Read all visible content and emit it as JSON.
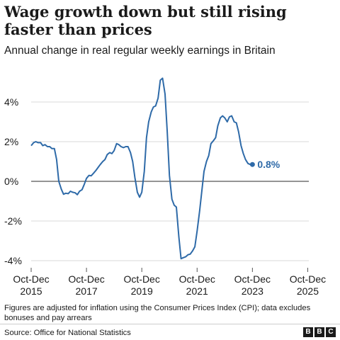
{
  "title": "Wage growth down but still rising faster than prices",
  "subtitle": "Annual change in real regular weekly earnings in Britain",
  "footnote": "Figures are adjusted for inflation using the Consumer Prices Index (CPI); data excludes bonuses and pay arrears",
  "source": "Source: Office for National Statistics",
  "logo": [
    "B",
    "B",
    "C"
  ],
  "colors": {
    "line": "#2e6aa8",
    "label": "#2e6aa8",
    "zero_line": "#555555",
    "grid": "#d9d9d9"
  },
  "chart_data": {
    "type": "line",
    "title": "Wage growth down but still rising faster than prices",
    "subtitle": "Annual change in real regular weekly earnings in Britain",
    "ylim": [
      -4.5,
      5.5
    ],
    "yticks": [
      4,
      2,
      0,
      -2,
      -4
    ],
    "ytick_labels": [
      "4%",
      "2%",
      "0%",
      "-2%",
      "-4%"
    ],
    "xlim": [
      2015.83,
      2025.87
    ],
    "xticks": [
      2015.83,
      2017.83,
      2019.83,
      2021.83,
      2023.83,
      2025.83
    ],
    "xtick_labels": [
      [
        "Oct-Dec",
        "2015"
      ],
      [
        "Oct-Dec",
        "2017"
      ],
      [
        "Oct-Dec",
        "2019"
      ],
      [
        "Oct-Dec",
        "2021"
      ],
      [
        "Oct-Dec",
        "2023"
      ],
      [
        "Oct-Dec",
        "2025"
      ]
    ],
    "grid": true,
    "end_label": "0.8%",
    "series": [
      {
        "values": [
          [
            2015.83,
            1.8
          ],
          [
            2015.92,
            1.95
          ],
          [
            2016.0,
            2.0
          ],
          [
            2016.08,
            1.95
          ],
          [
            2016.17,
            1.95
          ],
          [
            2016.25,
            1.8
          ],
          [
            2016.33,
            1.85
          ],
          [
            2016.42,
            1.75
          ],
          [
            2016.5,
            1.75
          ],
          [
            2016.58,
            1.65
          ],
          [
            2016.67,
            1.65
          ],
          [
            2016.75,
            1.1
          ],
          [
            2016.83,
            0.0
          ],
          [
            2016.92,
            -0.4
          ],
          [
            2017.0,
            -0.65
          ],
          [
            2017.08,
            -0.6
          ],
          [
            2017.17,
            -0.62
          ],
          [
            2017.25,
            -0.5
          ],
          [
            2017.33,
            -0.55
          ],
          [
            2017.42,
            -0.58
          ],
          [
            2017.5,
            -0.67
          ],
          [
            2017.58,
            -0.5
          ],
          [
            2017.67,
            -0.42
          ],
          [
            2017.75,
            -0.15
          ],
          [
            2017.83,
            0.15
          ],
          [
            2017.92,
            0.3
          ],
          [
            2018.0,
            0.28
          ],
          [
            2018.08,
            0.4
          ],
          [
            2018.17,
            0.55
          ],
          [
            2018.25,
            0.7
          ],
          [
            2018.33,
            0.85
          ],
          [
            2018.42,
            1.0
          ],
          [
            2018.5,
            1.1
          ],
          [
            2018.58,
            1.35
          ],
          [
            2018.67,
            1.45
          ],
          [
            2018.75,
            1.4
          ],
          [
            2018.83,
            1.55
          ],
          [
            2018.92,
            1.9
          ],
          [
            2019.0,
            1.85
          ],
          [
            2019.08,
            1.75
          ],
          [
            2019.17,
            1.7
          ],
          [
            2019.25,
            1.75
          ],
          [
            2019.33,
            1.75
          ],
          [
            2019.42,
            1.45
          ],
          [
            2019.5,
            1.0
          ],
          [
            2019.58,
            0.2
          ],
          [
            2019.67,
            -0.55
          ],
          [
            2019.75,
            -0.8
          ],
          [
            2019.83,
            -0.55
          ],
          [
            2019.92,
            0.5
          ],
          [
            2020.0,
            2.2
          ],
          [
            2020.08,
            3.0
          ],
          [
            2020.17,
            3.5
          ],
          [
            2020.25,
            3.75
          ],
          [
            2020.33,
            3.8
          ],
          [
            2020.42,
            4.2
          ],
          [
            2020.5,
            5.1
          ],
          [
            2020.58,
            5.2
          ],
          [
            2020.67,
            4.4
          ],
          [
            2020.75,
            2.5
          ],
          [
            2020.83,
            0.3
          ],
          [
            2020.92,
            -0.9
          ],
          [
            2021.0,
            -1.2
          ],
          [
            2021.08,
            -1.3
          ],
          [
            2021.17,
            -2.8
          ],
          [
            2021.25,
            -3.9
          ],
          [
            2021.33,
            -3.85
          ],
          [
            2021.42,
            -3.8
          ],
          [
            2021.5,
            -3.7
          ],
          [
            2021.58,
            -3.67
          ],
          [
            2021.67,
            -3.5
          ],
          [
            2021.75,
            -3.3
          ],
          [
            2021.83,
            -2.5
          ],
          [
            2021.92,
            -1.5
          ],
          [
            2022.0,
            -0.5
          ],
          [
            2022.08,
            0.5
          ],
          [
            2022.17,
            1.0
          ],
          [
            2022.25,
            1.3
          ],
          [
            2022.33,
            1.9
          ],
          [
            2022.42,
            2.05
          ],
          [
            2022.5,
            2.2
          ],
          [
            2022.58,
            2.8
          ],
          [
            2022.67,
            3.2
          ],
          [
            2022.75,
            3.3
          ],
          [
            2022.83,
            3.2
          ],
          [
            2022.92,
            3.0
          ],
          [
            2023.0,
            3.25
          ],
          [
            2023.08,
            3.3
          ],
          [
            2023.17,
            3.0
          ],
          [
            2023.25,
            2.95
          ],
          [
            2023.33,
            2.5
          ],
          [
            2023.42,
            1.8
          ],
          [
            2023.5,
            1.4
          ],
          [
            2023.58,
            1.1
          ],
          [
            2023.67,
            0.9
          ],
          [
            2023.75,
            0.85
          ],
          [
            2023.83,
            0.85
          ]
        ]
      }
    ]
  }
}
